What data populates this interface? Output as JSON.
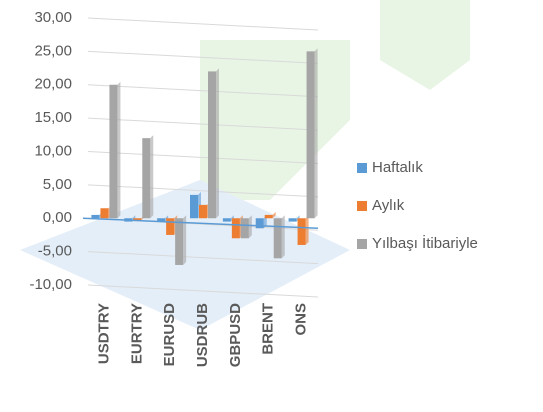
{
  "chart_data": {
    "type": "bar",
    "categories": [
      "USDTRY",
      "EURTRY",
      "EURUSD",
      "USDRUB",
      "GBPUSD",
      "BRENT",
      "ONS"
    ],
    "series": [
      {
        "name": "Haftalık",
        "color": "#5b9bd5",
        "values": [
          0.5,
          -0.5,
          -0.5,
          3.5,
          -0.5,
          -1.5,
          -0.5
        ]
      },
      {
        "name": "Aylık",
        "color": "#ed7d31",
        "values": [
          1.5,
          -0.3,
          -2.5,
          2,
          -3,
          0.5,
          -4
        ]
      },
      {
        "name": "Yılbaşı İtibariyle",
        "color": "#a5a5a5",
        "values": [
          20,
          12,
          -7,
          22,
          -3,
          -6,
          25
        ]
      }
    ],
    "ylim": [
      -10,
      30
    ],
    "yticks": [
      {
        "value": -10,
        "label": "-10,00"
      },
      {
        "value": -5,
        "label": "-5,00"
      },
      {
        "value": 0,
        "label": "0,00"
      },
      {
        "value": 5,
        "label": "5,00"
      },
      {
        "value": 10,
        "label": "10,00"
      },
      {
        "value": 15,
        "label": "15,00"
      },
      {
        "value": 20,
        "label": "20,00"
      },
      {
        "value": 25,
        "label": "25,00"
      },
      {
        "value": 30,
        "label": "30,00"
      }
    ],
    "grid": true,
    "legend": "right"
  }
}
